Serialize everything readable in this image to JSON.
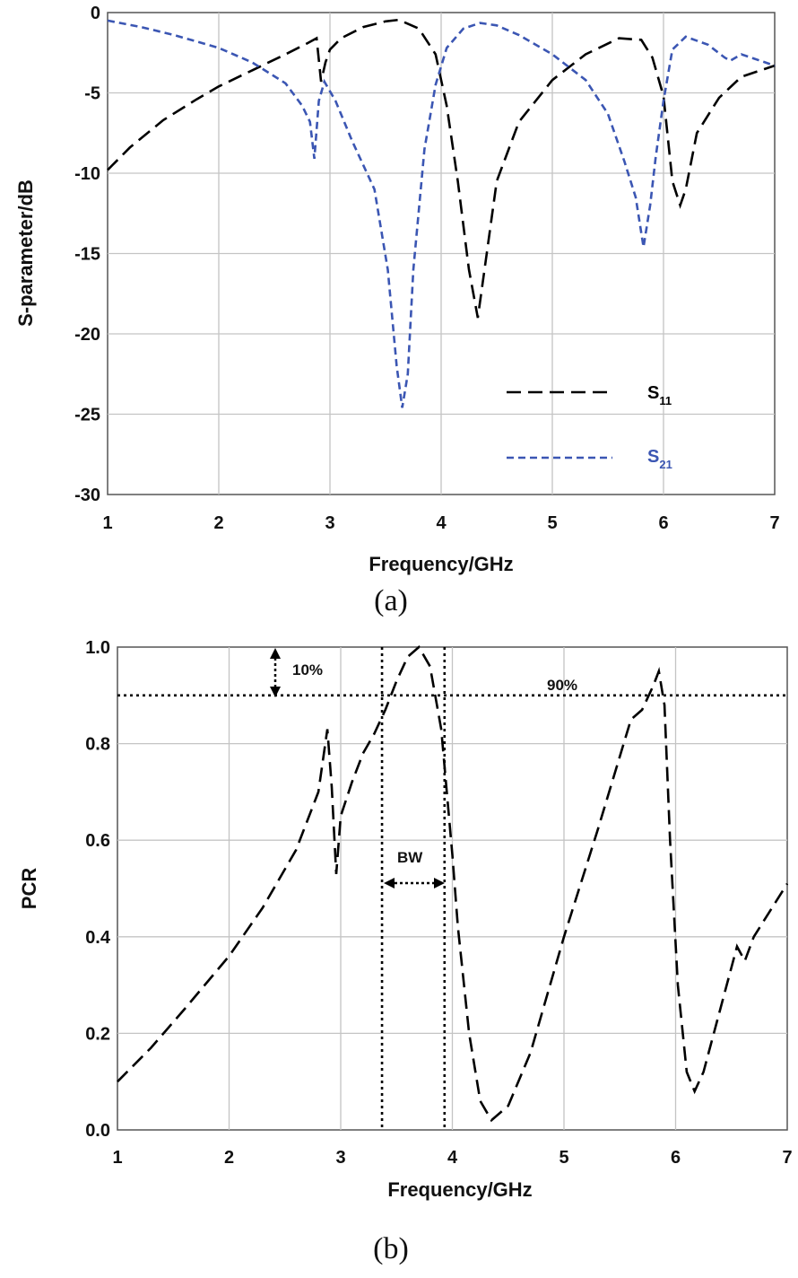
{
  "chart_data": [
    {
      "type": "line",
      "panel_label": "(a)",
      "xlabel": "Frequency/GHz",
      "ylabel": "S-parameter/dB",
      "xlim": [
        1,
        7
      ],
      "ylim": [
        -30,
        0
      ],
      "xticks": [
        "1",
        "2",
        "3",
        "4",
        "5",
        "6",
        "7"
      ],
      "yticks": [
        "0",
        "-5",
        "-10",
        "-15",
        "-20",
        "-25",
        "-30"
      ],
      "grid": true,
      "legend": "bottom-right",
      "series": [
        {
          "name_base": "S",
          "name_sub": "11",
          "color": "#000000",
          "x": [
            1.0,
            1.2,
            1.5,
            1.8,
            2.0,
            2.3,
            2.6,
            2.8,
            2.88,
            2.92,
            2.96,
            3.0,
            3.1,
            3.3,
            3.5,
            3.62,
            3.8,
            3.95,
            4.05,
            4.15,
            4.25,
            4.33,
            4.4,
            4.5,
            4.7,
            5.0,
            5.3,
            5.6,
            5.8,
            5.9,
            6.0,
            6.08,
            6.15,
            6.2,
            6.3,
            6.5,
            6.7,
            7.0
          ],
          "y": [
            -9.8,
            -8.4,
            -6.7,
            -5.4,
            -4.6,
            -3.6,
            -2.6,
            -1.9,
            -1.6,
            -4.3,
            -3.1,
            -2.3,
            -1.6,
            -0.9,
            -0.55,
            -0.45,
            -1.0,
            -2.6,
            -5.8,
            -10.5,
            -16.0,
            -19.0,
            -15.5,
            -10.5,
            -6.8,
            -4.2,
            -2.6,
            -1.6,
            -1.7,
            -2.8,
            -5.2,
            -10.5,
            -12.0,
            -11.0,
            -7.5,
            -5.3,
            -4.0,
            -3.3
          ]
        },
        {
          "name_base": "S",
          "name_sub": "21",
          "color": "#3b56b3",
          "x": [
            1.0,
            1.3,
            1.6,
            2.0,
            2.3,
            2.6,
            2.75,
            2.82,
            2.86,
            2.9,
            2.95,
            3.05,
            3.2,
            3.4,
            3.52,
            3.6,
            3.65,
            3.7,
            3.75,
            3.85,
            3.95,
            4.05,
            4.2,
            4.35,
            4.5,
            4.7,
            5.0,
            5.3,
            5.5,
            5.65,
            5.75,
            5.82,
            5.88,
            5.93,
            6.0,
            6.08,
            6.2,
            6.4,
            6.55,
            6.6,
            6.7,
            7.0
          ],
          "y": [
            -0.5,
            -0.9,
            -1.4,
            -2.2,
            -3.1,
            -4.4,
            -5.8,
            -6.8,
            -9.1,
            -5.5,
            -4.3,
            -5.5,
            -8.0,
            -11.0,
            -16.0,
            -22.0,
            -24.6,
            -22.5,
            -16.0,
            -8.5,
            -4.5,
            -2.2,
            -1.0,
            -0.65,
            -0.8,
            -1.4,
            -2.6,
            -4.2,
            -6.3,
            -9.3,
            -11.5,
            -14.6,
            -12.0,
            -9.0,
            -5.5,
            -2.3,
            -1.5,
            -2.0,
            -2.8,
            -3.0,
            -2.6,
            -3.3
          ]
        }
      ]
    },
    {
      "type": "line",
      "panel_label": "(b)",
      "xlabel": "Frequency/GHz",
      "ylabel": "PCR",
      "xlim": [
        1,
        7
      ],
      "ylim": [
        0,
        1.0
      ],
      "xticks": [
        "1",
        "2",
        "3",
        "4",
        "5",
        "6",
        "7"
      ],
      "yticks": [
        "1.0",
        "0.8",
        "0.6",
        "0.4",
        "0.2",
        "0.0"
      ],
      "grid": true,
      "series": [
        {
          "color": "#000000",
          "x": [
            1.0,
            1.3,
            1.6,
            2.0,
            2.3,
            2.6,
            2.8,
            2.88,
            2.92,
            2.96,
            3.0,
            3.1,
            3.2,
            3.3,
            3.4,
            3.5,
            3.6,
            3.7,
            3.8,
            3.9,
            3.95,
            4.0,
            4.05,
            4.15,
            4.25,
            4.35,
            4.5,
            4.7,
            5.0,
            5.3,
            5.6,
            5.7,
            5.8,
            5.85,
            5.9,
            5.95,
            6.02,
            6.1,
            6.17,
            6.25,
            6.4,
            6.55,
            6.62,
            6.7,
            7.0
          ],
          "y": [
            0.1,
            0.17,
            0.25,
            0.36,
            0.46,
            0.58,
            0.7,
            0.83,
            0.71,
            0.53,
            0.65,
            0.72,
            0.78,
            0.82,
            0.87,
            0.93,
            0.98,
            1.0,
            0.96,
            0.83,
            0.7,
            0.57,
            0.42,
            0.2,
            0.06,
            0.02,
            0.05,
            0.16,
            0.4,
            0.62,
            0.85,
            0.87,
            0.92,
            0.95,
            0.88,
            0.6,
            0.3,
            0.12,
            0.08,
            0.12,
            0.25,
            0.38,
            0.35,
            0.4,
            0.51
          ]
        }
      ],
      "reference_lines": {
        "pcr_threshold": 0.9,
        "band_start_ghz": 3.37,
        "band_end_ghz": 3.93
      },
      "annotations": {
        "margin_label": "10%",
        "threshold_label": "90%",
        "bandwidth_label": "BW"
      }
    }
  ]
}
